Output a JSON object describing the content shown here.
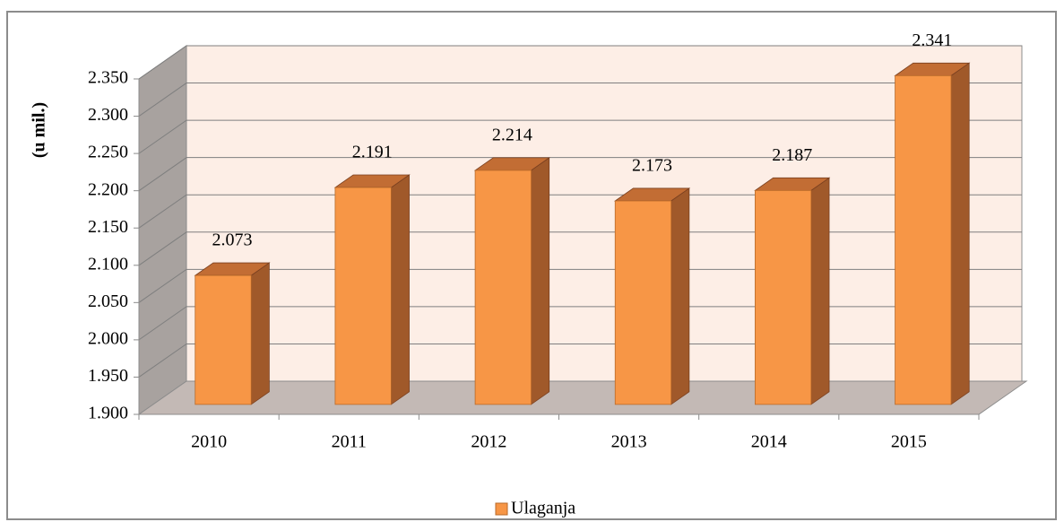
{
  "chart_data": {
    "type": "bar3d",
    "ylabel": "(u mil.)",
    "categories": [
      "2010",
      "2011",
      "2012",
      "2013",
      "2014",
      "2015"
    ],
    "series": [
      {
        "name": "Ulaganja",
        "color": "#f79646",
        "values": [
          2073,
          2191,
          2214,
          2173,
          2187,
          2341
        ],
        "value_labels": [
          "2.073",
          "2.191",
          "2.214",
          "2.173",
          "2.187",
          "2.341"
        ]
      }
    ],
    "ylim": [
      1900,
      2350
    ],
    "yticks": [
      {
        "value": 1900,
        "label": "1.900"
      },
      {
        "value": 1950,
        "label": "1.950"
      },
      {
        "value": 2000,
        "label": "2.000"
      },
      {
        "value": 2050,
        "label": "2.050"
      },
      {
        "value": 2100,
        "label": "2.100"
      },
      {
        "value": 2150,
        "label": "2.150"
      },
      {
        "value": 2200,
        "label": "2.200"
      },
      {
        "value": 2250,
        "label": "2.250"
      },
      {
        "value": 2300,
        "label": "2.300"
      },
      {
        "value": 2350,
        "label": "2.350"
      }
    ],
    "grid": true,
    "legend": "bottom"
  }
}
